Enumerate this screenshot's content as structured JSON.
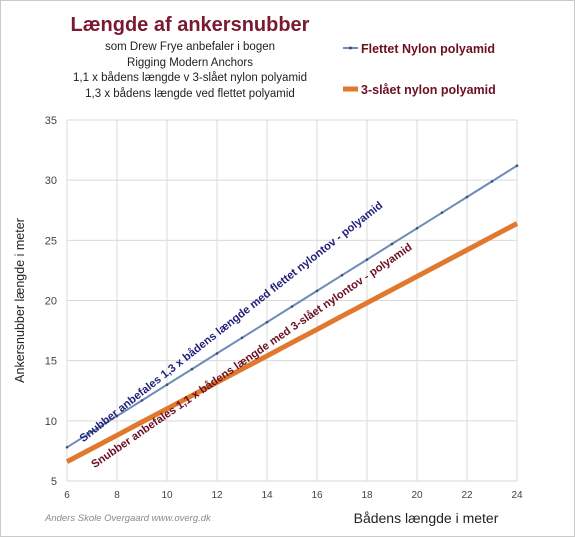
{
  "title": "Længde af ankersnubber",
  "subtitle_lines": [
    "som Drew Frye anbefaler i bogen",
    "Rigging Modern Anchors",
    "1,1 x bådens længde v 3-slået nylon polyamid",
    "1,3 x bådens længde ved flettet polyamid"
  ],
  "watermark": "Anders Skole Overgaard www.overg.dk",
  "chart_data": {
    "type": "line",
    "title": "Længde af ankersnubber",
    "xlabel": "Bådens længde i meter",
    "ylabel": "Ankersnubber længde i meter",
    "xlim": [
      6,
      24
    ],
    "ylim": [
      5,
      35
    ],
    "xticks": [
      6,
      8,
      10,
      12,
      14,
      16,
      18,
      20,
      22,
      24
    ],
    "yticks": [
      5,
      10,
      15,
      20,
      25,
      30,
      35
    ],
    "grid": true,
    "legend_position": "top-right",
    "series": [
      {
        "name": "Flettet Nylon polyamid",
        "color": "#6e8ab8",
        "x": [
          6,
          7,
          8,
          9,
          10,
          11,
          12,
          13,
          14,
          15,
          16,
          17,
          18,
          19,
          20,
          21,
          22,
          23,
          24
        ],
        "values": [
          7.8,
          9.1,
          10.4,
          11.7,
          13.0,
          14.3,
          15.6,
          16.9,
          18.2,
          19.5,
          20.8,
          22.1,
          23.4,
          24.7,
          26.0,
          27.3,
          28.6,
          29.9,
          31.2
        ]
      },
      {
        "name": "3-slået nylon polyamid",
        "color": "#e0782e",
        "x": [
          6,
          7,
          8,
          9,
          10,
          11,
          12,
          13,
          14,
          15,
          16,
          17,
          18,
          19,
          20,
          21,
          22,
          23,
          24
        ],
        "values": [
          6.6,
          7.7,
          8.8,
          9.9,
          11.0,
          12.1,
          13.2,
          14.3,
          15.4,
          16.5,
          17.6,
          18.7,
          19.8,
          20.9,
          22.0,
          23.1,
          24.2,
          25.3,
          26.4
        ]
      }
    ],
    "annotations": [
      {
        "text": "Snubber anbefales 1,3 x bådens længde med flettet nylontov - polyamid",
        "color": "#1f1f7a"
      },
      {
        "text": "Snubber anbefales 1,1 x bådens længde med 3-slået nylontov - polyamid",
        "color": "#6b1020"
      }
    ]
  }
}
